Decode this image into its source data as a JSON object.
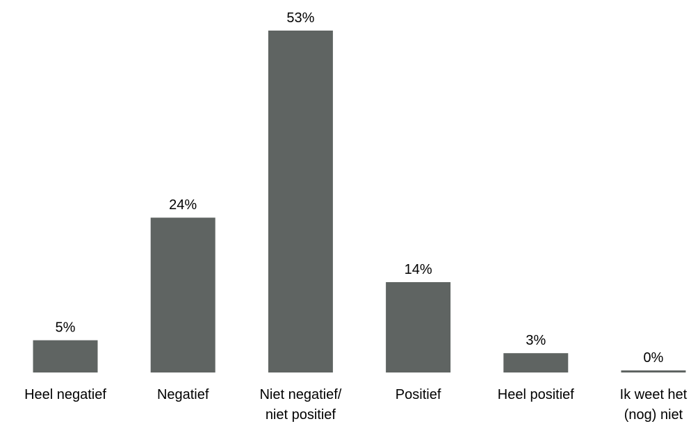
{
  "chart_data": {
    "type": "bar",
    "categories": [
      [
        "Heel negatief"
      ],
      [
        "Negatief"
      ],
      [
        "Niet negatief/",
        "niet positief"
      ],
      [
        "Positief"
      ],
      [
        "Heel positief"
      ],
      [
        "Ik weet het",
        "(nog) niet"
      ]
    ],
    "values": [
      5,
      24,
      53,
      14,
      3,
      0
    ],
    "value_labels": [
      "5%",
      "24%",
      "53%",
      "14%",
      "3%",
      "0%"
    ],
    "unit": "%",
    "ylim": [
      0,
      53
    ],
    "grid": false,
    "legend": "none",
    "bar_color": "#5f6462"
  }
}
